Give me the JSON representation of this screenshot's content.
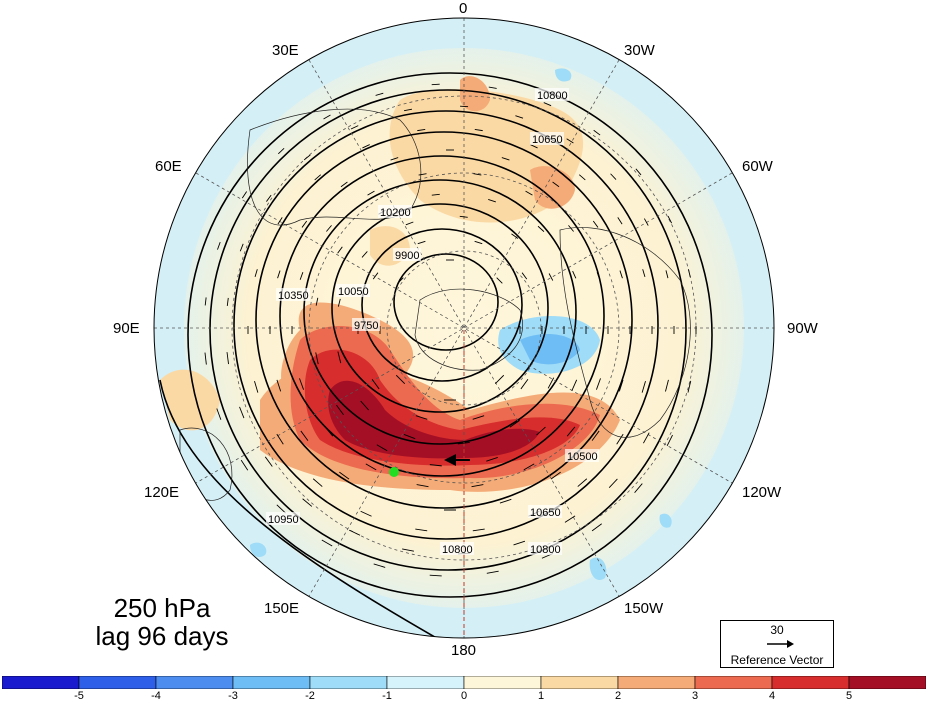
{
  "title": {
    "level": "250 hPa",
    "lag": "lag 96 days"
  },
  "longitude_labels": [
    "0",
    "30W",
    "60W",
    "90W",
    "120W",
    "150W",
    "180",
    "150E",
    "120E",
    "90E",
    "60E",
    "30E"
  ],
  "contour_labels": [
    "10800",
    "10650",
    "10500",
    "10350",
    "10200",
    "10050",
    "9900",
    "9750",
    "10950"
  ],
  "reference_vector": {
    "value": "30",
    "label": "Reference Vector"
  },
  "colorbar": {
    "ticks": [
      "-5",
      "-4",
      "-3",
      "-2",
      "-1",
      "0",
      "1",
      "2",
      "3",
      "4",
      "5"
    ],
    "colors": [
      "#1a1acf",
      "#2e5fe8",
      "#4e8df0",
      "#6fbdf5",
      "#9fdcf7",
      "#d6f3fb",
      "#fdf6d8",
      "#fbd9a4",
      "#f5ab77",
      "#ec6a4f",
      "#d72d2d",
      "#a50f25"
    ]
  },
  "marker_color": "#22dd22"
}
